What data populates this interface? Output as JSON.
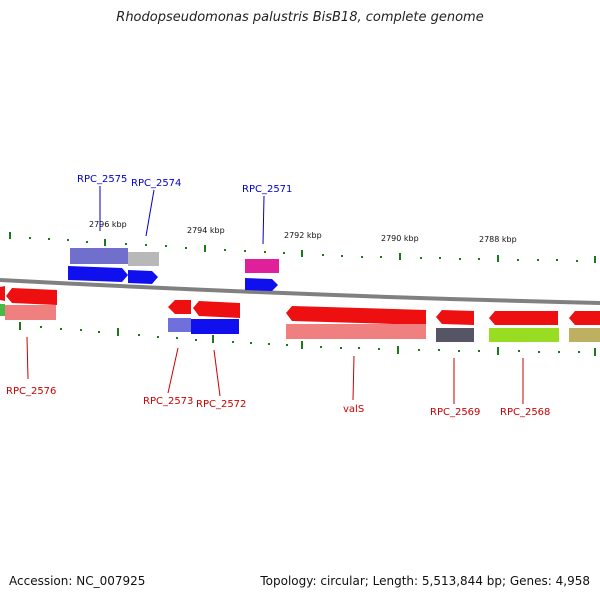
{
  "title": "Rhodopseudomonas palustris BisB18, complete genome",
  "footer": {
    "accession": "Accession: NC_007925",
    "summary": "Topology: circular; Length: 5,513,844 bp; Genes: 4,958"
  },
  "colors": {
    "forward_gene": "#1a1aff",
    "reverse_gene": "#ff1a1a",
    "forward_label": "#0000cc",
    "reverse_label": "#cc0000",
    "backbone": "#888888",
    "tick": "#006600"
  },
  "ticks": [
    {
      "label": "2796 kbp"
    },
    {
      "label": "2794 kbp"
    },
    {
      "label": "2792 kbp"
    },
    {
      "label": "2790 kbp"
    },
    {
      "label": "2788 kbp"
    }
  ],
  "forward_labels": [
    "RPC_2575",
    "RPC_2574",
    "RPC_2571"
  ],
  "reverse_labels": [
    "RPC_2576",
    "RPC_2573",
    "RPC_2572",
    "valS",
    "RPC_2569",
    "RPC_2568"
  ]
}
